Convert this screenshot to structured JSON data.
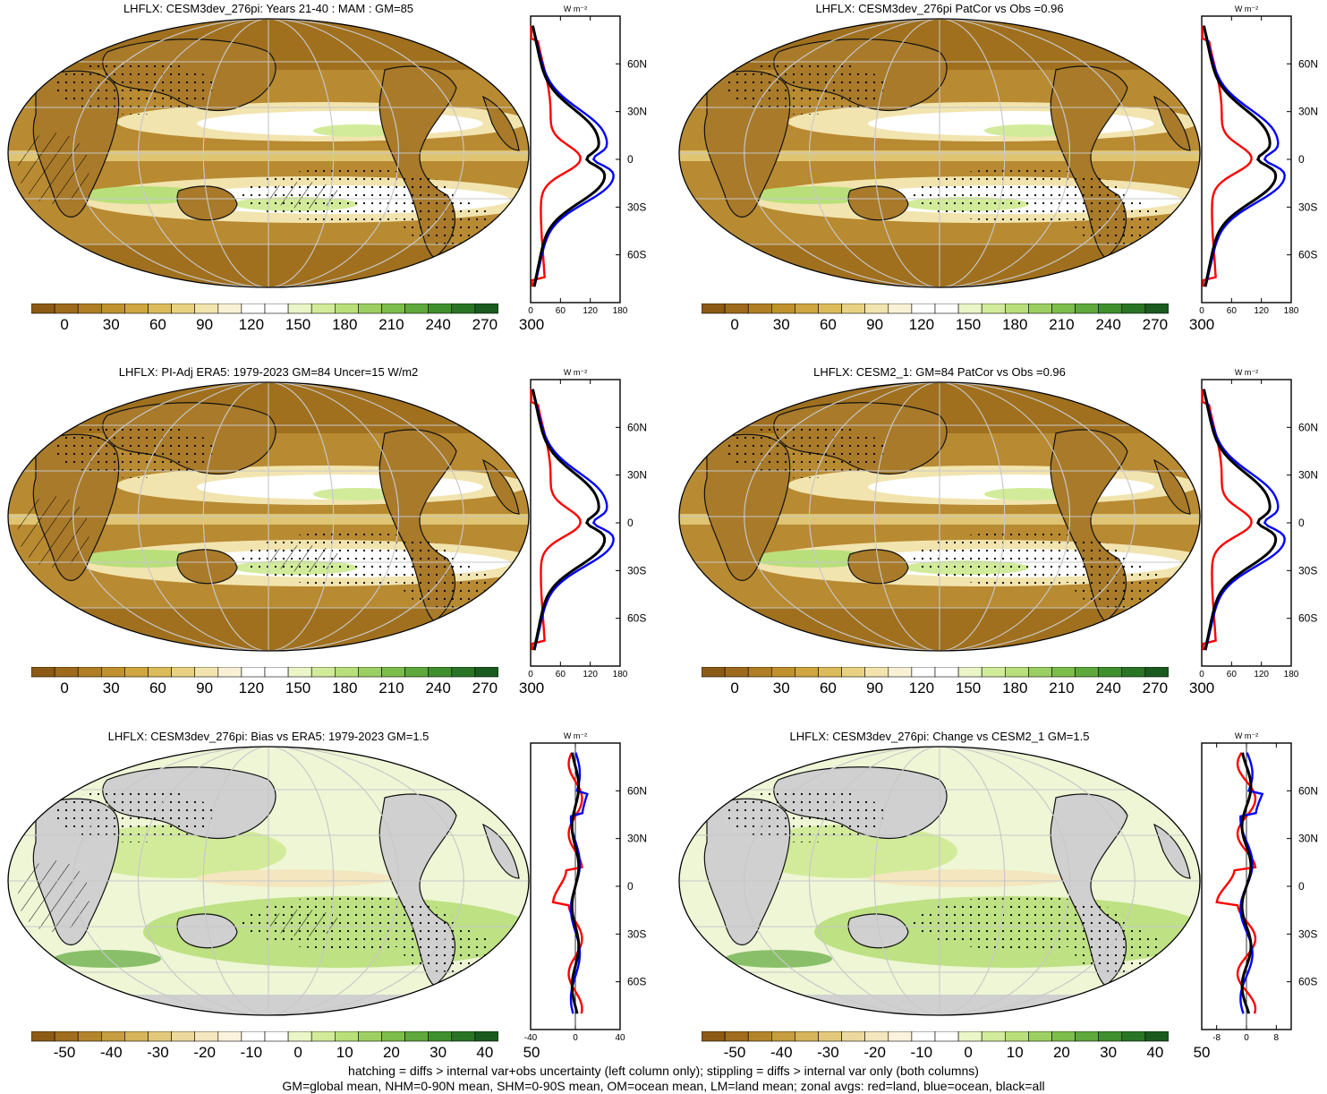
{
  "panels": [
    {
      "id": "p1",
      "title": "LHFLX: CESM3dev_276pi: Years 21-40 : MAM : GM=85",
      "kind": "abs",
      "zonal_xticks": [
        "0",
        "60",
        "120",
        "180"
      ],
      "zonal_xlim": [
        0,
        180
      ],
      "colorbar_labels": [
        "0",
        "30",
        "60",
        "90",
        "120",
        "150",
        "180",
        "210",
        "240",
        "270",
        "300"
      ]
    },
    {
      "id": "p2",
      "title": "LHFLX: CESM3dev_276pi PatCor vs Obs =0.96",
      "kind": "abs",
      "zonal_xticks": [
        "0",
        "60",
        "120",
        "180"
      ],
      "zonal_xlim": [
        0,
        180
      ],
      "colorbar_labels": [
        "0",
        "30",
        "60",
        "90",
        "120",
        "150",
        "180",
        "210",
        "240",
        "270",
        "300"
      ]
    },
    {
      "id": "p3",
      "title": "LHFLX: PI-Adj ERA5: 1979-2023 GM=84 Uncer=15 W/m2",
      "kind": "abs",
      "zonal_xticks": [
        "0",
        "60",
        "120",
        "180"
      ],
      "zonal_xlim": [
        0,
        180
      ],
      "colorbar_labels": [
        "0",
        "30",
        "60",
        "90",
        "120",
        "150",
        "180",
        "210",
        "240",
        "270",
        "300"
      ]
    },
    {
      "id": "p4",
      "title": "LHFLX: CESM2_1: GM=84 PatCor vs Obs =0.96",
      "kind": "abs",
      "zonal_xticks": [
        "0",
        "60",
        "120",
        "180"
      ],
      "zonal_xlim": [
        0,
        180
      ],
      "colorbar_labels": [
        "0",
        "30",
        "60",
        "90",
        "120",
        "150",
        "180",
        "210",
        "240",
        "270",
        "300"
      ]
    },
    {
      "id": "p5",
      "title": "LHFLX: CESM3dev_276pi: Bias vs ERA5: 1979-2023 GM=1.5",
      "kind": "diff",
      "zonal_xticks": [
        "-40",
        "0",
        "40"
      ],
      "zonal_xlim": [
        -40,
        40
      ],
      "colorbar_labels": [
        "-50",
        "-40",
        "-30",
        "-20",
        "-10",
        "0",
        "10",
        "20",
        "30",
        "40",
        "50"
      ]
    },
    {
      "id": "p6",
      "title": "LHFLX: CESM3dev_276pi: Change vs CESM2_1 GM=1.5",
      "kind": "diff",
      "zonal_xticks": [
        "-8",
        "0",
        "8"
      ],
      "zonal_xlim": [
        -12,
        12
      ],
      "colorbar_labels": [
        "-50",
        "-40",
        "-30",
        "-20",
        "-10",
        "0",
        "10",
        "20",
        "30",
        "40",
        "50"
      ]
    }
  ],
  "zonal_units": "W m⁻²",
  "lat_ticks": [
    "60N",
    "30N",
    "0",
    "30S",
    "60S"
  ],
  "colors": {
    "abs_scale": [
      "#8c5a14",
      "#9e6a1c",
      "#b07e24",
      "#c0922e",
      "#cfa640",
      "#dcbc5a",
      "#e8d282",
      "#f2e4ae",
      "#f9f1d6",
      "#ffffff",
      "#ffffff",
      "#eaf5c8",
      "#d2eb9a",
      "#b8df7a",
      "#9ccf62",
      "#7dbd4c",
      "#5fa83c",
      "#3f8f2e",
      "#2a7426",
      "#1a5a1e"
    ],
    "diff_scale": [
      "#8c5a14",
      "#a06c1e",
      "#b4842c",
      "#c69c40",
      "#d6b45a",
      "#e2c87a",
      "#ecd89c",
      "#f4e6be",
      "#faf2dc",
      "#ffffff",
      "#ffffff",
      "#eaf5c8",
      "#d2eb9a",
      "#b8df7a",
      "#9ccf62",
      "#7dbd4c",
      "#5fa83c",
      "#3f8f2e",
      "#2a7426",
      "#1a5a1e"
    ],
    "land_line": "#111111",
    "grid_line": "#c8c8c8",
    "red": "#ff0000",
    "blue": "#0000ff",
    "black": "#000000",
    "missing": "#d0d0d0"
  },
  "footer": {
    "line1": "hatching = diffs > internal var+obs uncertainty (left column only); stippling = diffs > internal var only (both columns)",
    "line2": "GM=global mean, NHM=0-90N mean, SHM=0-90S mean, OM=ocean mean, LM=land mean; zonal avgs: red=land, blue=ocean, black=all"
  }
}
